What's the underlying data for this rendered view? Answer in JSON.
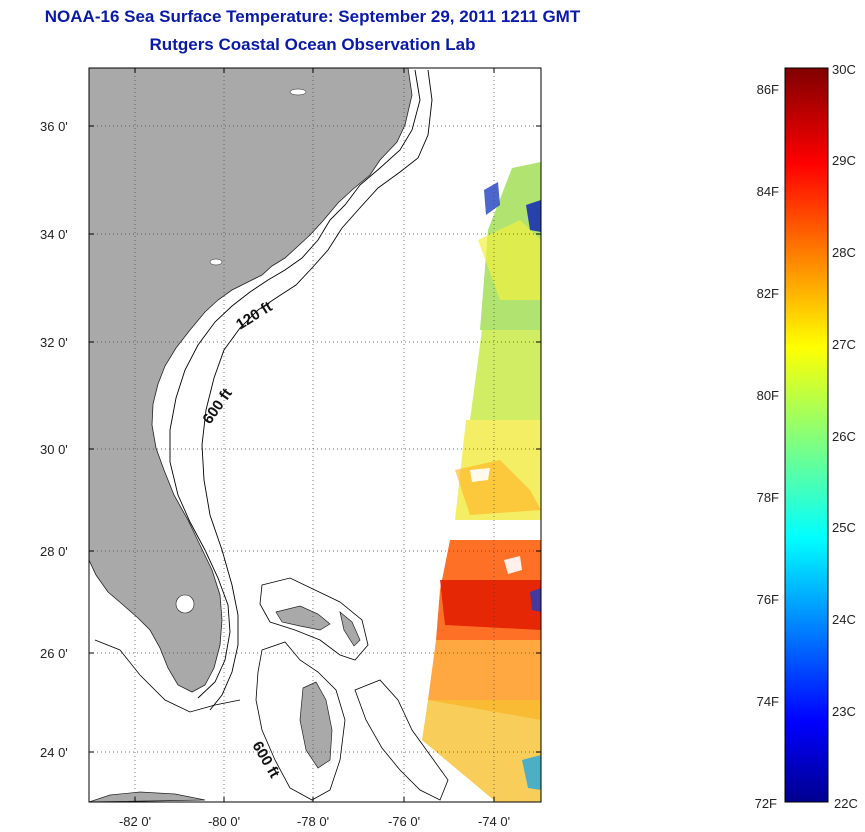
{
  "title": "NOAA-16 Sea Surface Temperature:  September 29, 2011 1211 GMT",
  "subtitle": "Rutgers Coastal Ocean Observation Lab",
  "map": {
    "lat_labels": [
      "36 0'",
      "34 0'",
      "32 0'",
      "30 0'",
      "28 0'",
      "26 0'",
      "24 0'"
    ],
    "lon_labels": [
      "-82 0'",
      "-80 0'",
      "-78 0'",
      "-76 0'",
      "-74 0'"
    ],
    "contour_labels": [
      "120 ft",
      "600 ft",
      "600 ft"
    ],
    "land_color": "#a9a9a9",
    "ocean_color": "#ffffff"
  },
  "colorbar": {
    "fahrenheit_labels": [
      "86F",
      "84F",
      "82F",
      "80F",
      "78F",
      "76F",
      "74F",
      "72F"
    ],
    "celsius_labels": [
      "30C",
      "29C",
      "28C",
      "27C",
      "26C",
      "25C",
      "24C",
      "23C",
      "22C"
    ],
    "colormap": "jet"
  }
}
